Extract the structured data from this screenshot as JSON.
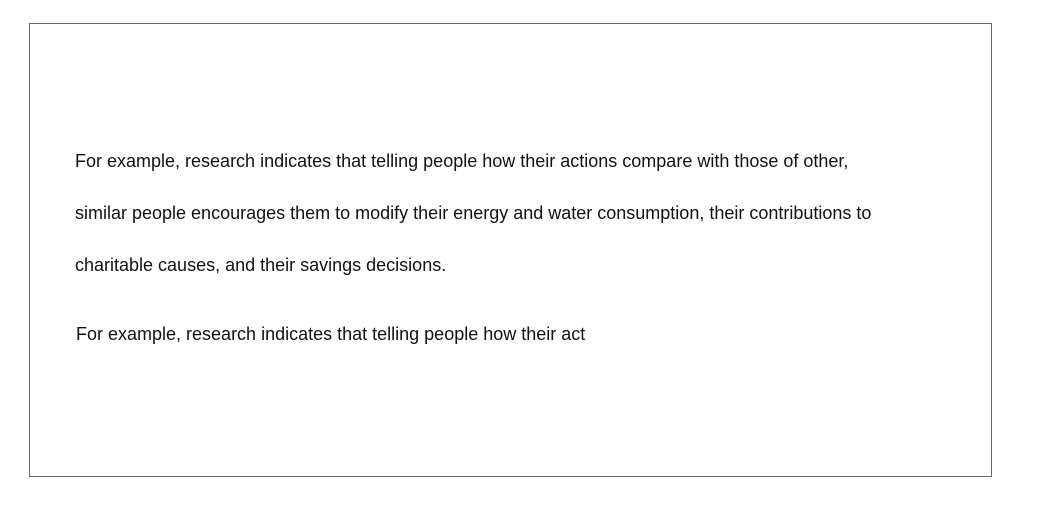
{
  "document": {
    "paragraph_1": {
      "lines": [
        "For example, research indicates that telling people how their actions compare with those of other,",
        "similar people encourages them to modify their energy and water consumption, their contributions to",
        "charitable causes, and their savings decisions."
      ]
    },
    "paragraph_2": {
      "text": "For example, research indicates that telling people how their act"
    }
  }
}
